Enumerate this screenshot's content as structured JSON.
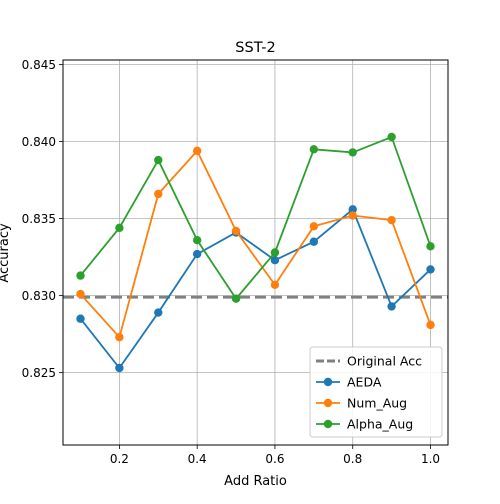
{
  "chart_data": {
    "type": "line",
    "title": "SST-2",
    "xlabel": "Add Ratio",
    "ylabel": "Accuracy",
    "xlim": [
      0.055,
      1.045
    ],
    "ylim": [
      0.8203,
      0.8453
    ],
    "xticks": [
      0.2,
      0.4,
      0.6,
      0.8,
      1.0
    ],
    "xtick_labels": [
      "0.2",
      "0.4",
      "0.6",
      "0.8",
      "1.0"
    ],
    "yticks": [
      0.825,
      0.83,
      0.835,
      0.84,
      0.845
    ],
    "ytick_labels": [
      "0.825",
      "0.830",
      "0.835",
      "0.840",
      "0.845"
    ],
    "grid": true,
    "legend_position": "lower-right",
    "x": [
      0.1,
      0.2,
      0.3,
      0.4,
      0.5,
      0.6,
      0.7,
      0.8,
      0.9,
      1.0
    ],
    "reference_line": {
      "name": "Original Acc",
      "value": 0.8299,
      "color": "#808080",
      "style": "dashed"
    },
    "series": [
      {
        "name": "AEDA",
        "color": "#1f77b4",
        "values": [
          0.8285,
          0.8253,
          0.8289,
          0.8327,
          0.8341,
          0.8323,
          0.8335,
          0.8356,
          0.8293,
          0.8317
        ]
      },
      {
        "name": "Num_Aug",
        "color": "#ff7f0e",
        "values": [
          0.8301,
          0.8273,
          0.8366,
          0.8394,
          0.8342,
          0.8307,
          0.8345,
          0.8352,
          0.8349,
          0.8281
        ]
      },
      {
        "name": "Alpha_Aug",
        "color": "#2ca02c",
        "values": [
          0.8313,
          0.8344,
          0.8388,
          0.8336,
          0.8298,
          0.8328,
          0.8395,
          0.8393,
          0.8403,
          0.8332
        ]
      }
    ]
  }
}
